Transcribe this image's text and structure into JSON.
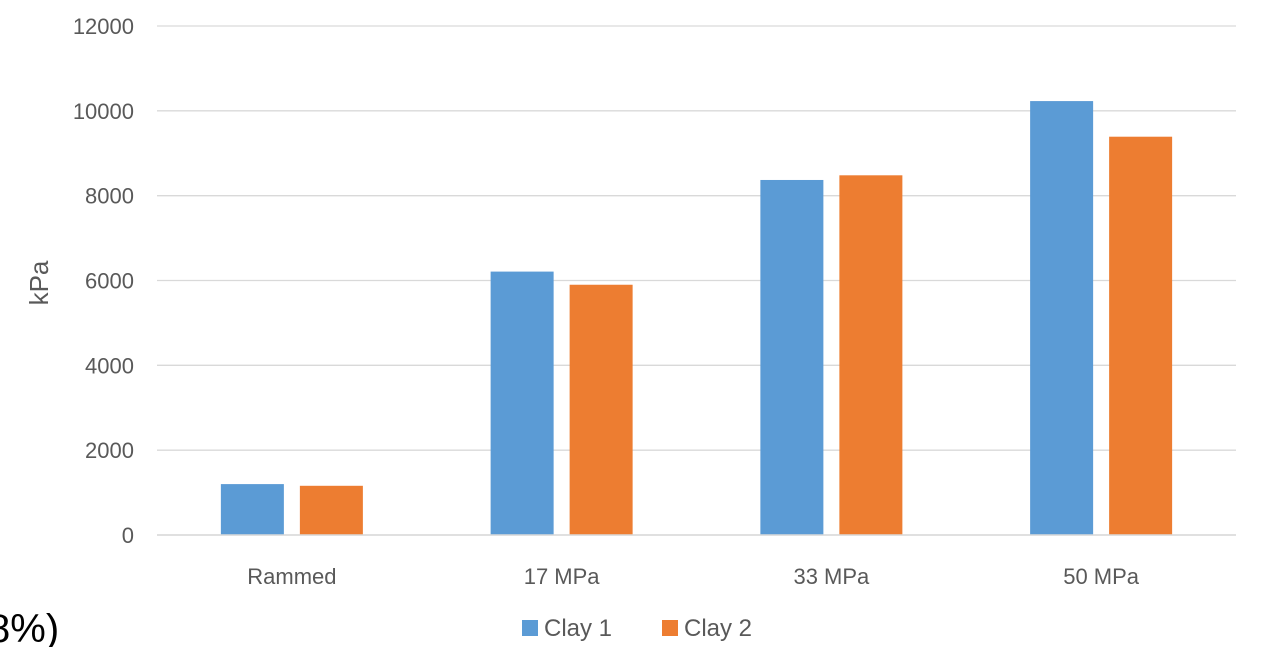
{
  "chart_data": {
    "type": "bar",
    "title": "",
    "xlabel": "",
    "ylabel": "kPa",
    "categories": [
      "Rammed",
      "17 MPa",
      "33 MPa",
      "50 MPa"
    ],
    "series": [
      {
        "name": "Clay 1",
        "color": "#5B9BD5",
        "values": [
          1200,
          6210,
          8370,
          10230
        ]
      },
      {
        "name": "Clay 2",
        "color": "#ED7D31",
        "values": [
          1160,
          5900,
          8480,
          9390
        ]
      }
    ],
    "ylim": [
      0,
      12000
    ],
    "yticks": [
      0,
      2000,
      4000,
      6000,
      8000,
      10000,
      12000
    ],
    "grid": true,
    "legend_position": "bottom"
  },
  "fragment_text": "8%)"
}
